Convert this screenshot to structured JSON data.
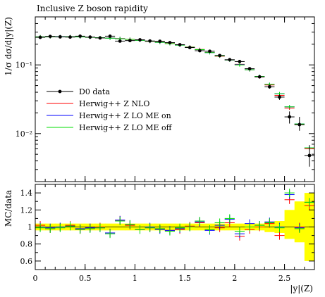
{
  "chart_data": [
    {
      "type": "scatter",
      "title": "Inclusive Z boson rapidity",
      "ylabel": "1/σ dσ/d|y|(Z)",
      "xlabel": "",
      "log_y": true,
      "xlim": [
        0,
        2.8
      ],
      "ylim": [
        0.002,
        0.5
      ],
      "yticks": [
        {
          "value": 0.1,
          "label": "10⁻¹"
        },
        {
          "value": 0.01,
          "label": "10⁻²"
        }
      ],
      "legend_position": "center-left",
      "x": [
        0.05,
        0.15,
        0.25,
        0.35,
        0.45,
        0.55,
        0.65,
        0.75,
        0.85,
        0.95,
        1.05,
        1.15,
        1.25,
        1.35,
        1.45,
        1.55,
        1.65,
        1.75,
        1.85,
        1.95,
        2.05,
        2.15,
        2.25,
        2.35,
        2.45,
        2.55,
        2.65,
        2.75
      ],
      "series": [
        {
          "name": "D0 data",
          "color": "#000000",
          "style": "points",
          "values": [
            0.252,
            0.26,
            0.256,
            0.254,
            0.262,
            0.254,
            0.247,
            0.262,
            0.222,
            0.226,
            0.232,
            0.223,
            0.221,
            0.211,
            0.197,
            0.179,
            0.161,
            0.158,
            0.137,
            0.119,
            0.112,
            0.088,
            0.067,
            0.048,
            0.034,
            0.0175,
            0.0135,
            0.0048
          ],
          "err_low": [
            0.005,
            0.005,
            0.005,
            0.005,
            0.005,
            0.005,
            0.005,
            0.005,
            0.005,
            0.005,
            0.005,
            0.005,
            0.005,
            0.005,
            0.005,
            0.004,
            0.004,
            0.004,
            0.004,
            0.003,
            0.003,
            0.003,
            0.003,
            0.003,
            0.003,
            0.0035,
            0.0025,
            0.0015
          ],
          "err_high": [
            0.005,
            0.005,
            0.005,
            0.005,
            0.005,
            0.005,
            0.005,
            0.005,
            0.005,
            0.005,
            0.005,
            0.005,
            0.005,
            0.005,
            0.005,
            0.004,
            0.004,
            0.004,
            0.004,
            0.003,
            0.003,
            0.003,
            0.003,
            0.003,
            0.003,
            0.0035,
            0.004,
            0.002
          ]
        },
        {
          "name": "Herwig++ Z NLO",
          "color": "#ff0000",
          "style": "markers",
          "values": [
            0.256,
            0.256,
            0.258,
            0.258,
            0.257,
            0.252,
            0.248,
            0.246,
            0.242,
            0.236,
            0.228,
            0.22,
            0.215,
            0.205,
            0.195,
            0.182,
            0.168,
            0.152,
            0.134,
            0.118,
            0.102,
            0.085,
            0.067,
            0.051,
            0.036,
            0.0235,
            0.0135,
            0.006
          ]
        },
        {
          "name": "Herwig++ Z LO ME on",
          "color": "#0000ff",
          "style": "markers",
          "values": [
            0.256,
            0.257,
            0.258,
            0.257,
            0.256,
            0.252,
            0.249,
            0.245,
            0.241,
            0.235,
            0.228,
            0.221,
            0.213,
            0.204,
            0.194,
            0.18,
            0.167,
            0.151,
            0.135,
            0.118,
            0.101,
            0.085,
            0.068,
            0.052,
            0.038,
            0.0245,
            0.0138,
            0.0062
          ]
        },
        {
          "name": "Herwig++ Z LO ME off",
          "color": "#00dd00",
          "style": "markers",
          "values": [
            0.256,
            0.257,
            0.257,
            0.257,
            0.256,
            0.252,
            0.249,
            0.245,
            0.24,
            0.235,
            0.228,
            0.221,
            0.213,
            0.204,
            0.194,
            0.181,
            0.167,
            0.151,
            0.135,
            0.118,
            0.1,
            0.085,
            0.068,
            0.052,
            0.038,
            0.0245,
            0.0138,
            0.0062
          ]
        }
      ]
    },
    {
      "type": "scatter",
      "ylabel": "MC/data",
      "xlabel": "|y|(Z)",
      "xlim": [
        0,
        2.8
      ],
      "ylim": [
        0.5,
        1.5
      ],
      "xticks": [
        0,
        0.5,
        1,
        1.5,
        2,
        2.5
      ],
      "xtick_labels": [
        "0",
        "0.5",
        "1",
        "1.5",
        "2",
        "2.5"
      ],
      "yticks": [
        0.6,
        0.8,
        1,
        1.2,
        1.4
      ],
      "ytick_labels": [
        "0.6",
        "0.8",
        "1",
        "1.2",
        "1.4"
      ],
      "band_color": "#ffff00",
      "band_low": [
        0.96,
        0.96,
        0.96,
        0.96,
        0.96,
        0.96,
        0.96,
        0.96,
        0.96,
        0.96,
        0.96,
        0.96,
        0.96,
        0.96,
        0.96,
        0.96,
        0.96,
        0.96,
        0.96,
        0.96,
        0.96,
        0.96,
        0.96,
        0.94,
        0.93,
        0.86,
        0.82,
        0.6
      ],
      "band_high": [
        1.04,
        1.04,
        1.04,
        1.04,
        1.04,
        1.04,
        1.04,
        1.04,
        1.04,
        1.04,
        1.04,
        1.04,
        1.04,
        1.04,
        1.04,
        1.04,
        1.04,
        1.04,
        1.04,
        1.04,
        1.04,
        1.04,
        1.04,
        1.06,
        1.07,
        1.2,
        1.3,
        1.4
      ],
      "x": [
        0.05,
        0.15,
        0.25,
        0.35,
        0.45,
        0.55,
        0.65,
        0.75,
        0.85,
        0.95,
        1.05,
        1.15,
        1.25,
        1.35,
        1.45,
        1.55,
        1.65,
        1.75,
        1.85,
        1.95,
        2.05,
        2.15,
        2.25,
        2.35,
        2.45,
        2.55,
        2.65,
        2.75
      ],
      "series": [
        {
          "name": "Herwig++ Z NLO",
          "color": "#ff0000",
          "values": [
            1.02,
            0.98,
            1.0,
            1.02,
            0.97,
            0.99,
            1.0,
            0.93,
            1.08,
            1.02,
            0.97,
            0.99,
            0.98,
            0.96,
            0.97,
            1.01,
            1.05,
            0.97,
            0.99,
            1.05,
            0.89,
            0.97,
            1.0,
            1.04,
            0.9,
            1.32,
            1.0,
            1.25
          ]
        },
        {
          "name": "Herwig++ Z LO ME on",
          "color": "#0000ff",
          "values": [
            1.0,
            0.99,
            1.0,
            1.01,
            0.98,
            0.99,
            0.99,
            0.93,
            1.08,
            1.03,
            0.97,
            1.0,
            0.97,
            0.96,
            0.98,
            1.0,
            1.06,
            0.96,
            1.02,
            1.09,
            0.92,
            1.04,
            1.02,
            1.06,
            1.0,
            1.38,
            0.99,
            1.29
          ]
        },
        {
          "name": "Herwig++ Z LO ME off",
          "color": "#00dd00",
          "values": [
            0.99,
            0.98,
            0.99,
            1.01,
            0.97,
            0.98,
            0.99,
            0.92,
            1.07,
            1.03,
            0.97,
            0.99,
            0.98,
            0.95,
            0.99,
            1.0,
            1.07,
            0.97,
            1.05,
            1.1,
            0.95,
            1.0,
            1.02,
            1.05,
            0.99,
            1.4,
            0.98,
            1.29
          ]
        }
      ]
    }
  ]
}
